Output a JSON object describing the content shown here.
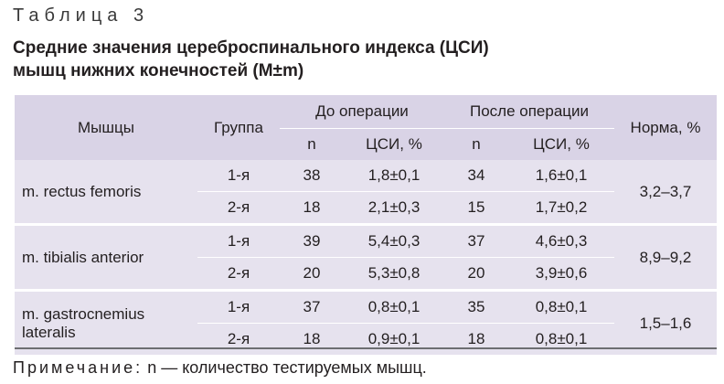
{
  "caption": "Таблица 3",
  "title": {
    "line1": "Средние значения цереброспинального индекса (ЦСИ)",
    "line2": "мышц нижних конечностей (M±m)"
  },
  "table": {
    "headers": {
      "muscles": "Мышцы",
      "group": "Группа",
      "before": "До операции",
      "after": "После операции",
      "norm": "Норма, %",
      "n": "n",
      "csi": "ЦСИ, %"
    },
    "rows": [
      {
        "muscle": "m. rectus femoris",
        "norm": "3,2–3,7",
        "groups": [
          {
            "group": "1-я",
            "n_before": "38",
            "csi_before": "1,8±0,1",
            "n_after": "34",
            "csi_after": "1,6±0,1"
          },
          {
            "group": "2-я",
            "n_before": "18",
            "csi_before": "2,1±0,3",
            "n_after": "15",
            "csi_after": "1,7±0,2"
          }
        ]
      },
      {
        "muscle": "m. tibialis anterior",
        "norm": "8,9–9,2",
        "groups": [
          {
            "group": "1-я",
            "n_before": "39",
            "csi_before": "5,4±0,3",
            "n_after": "37",
            "csi_after": "4,6±0,3"
          },
          {
            "group": "2-я",
            "n_before": "20",
            "csi_before": "5,3±0,8",
            "n_after": "20",
            "csi_after": "3,9±0,6"
          }
        ]
      },
      {
        "muscle": "m. gastrocnemius lateralis",
        "norm": "1,5–1,6",
        "groups": [
          {
            "group": "1-я",
            "n_before": "37",
            "csi_before": "0,8±0,1",
            "n_after": "35",
            "csi_after": "0,8±0,1"
          },
          {
            "group": "2-я",
            "n_before": "18",
            "csi_before": "0,9±0,1",
            "n_after": "18",
            "csi_after": "0,8±0,1"
          }
        ]
      }
    ]
  },
  "note": {
    "label": "Примечание:",
    "text": " n — количество тестируемых мышц."
  },
  "colors": {
    "header_bg": "#d9d3e6",
    "body_bg": "#e6e2ee",
    "text": "#231f20"
  }
}
